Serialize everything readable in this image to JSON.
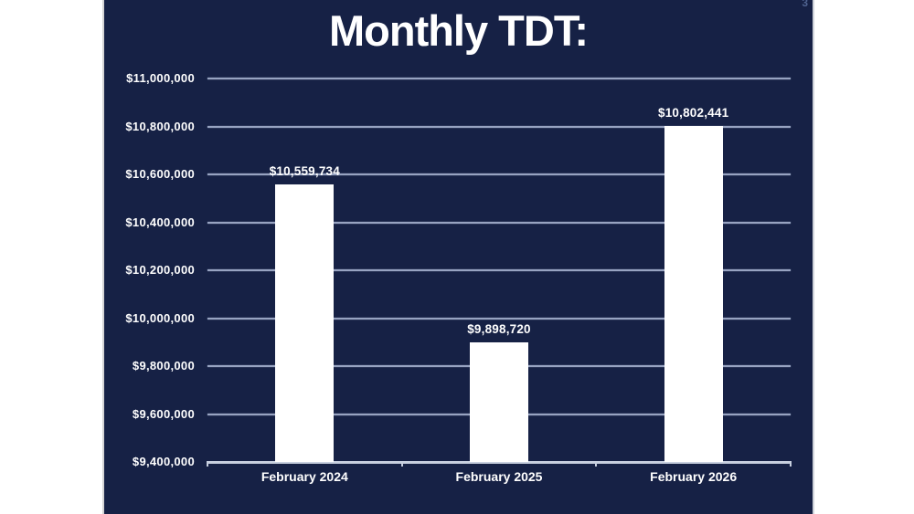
{
  "slide": {
    "page_number": "3"
  },
  "chart_data": {
    "type": "bar",
    "title": "Monthly TDT:",
    "categories": [
      "February 2024",
      "February 2025",
      "February 2026"
    ],
    "values": [
      10559734,
      9898720,
      10802441
    ],
    "value_labels": [
      "$10,559,734",
      "$9,898,720",
      "$10,802,441"
    ],
    "xlabel": "",
    "ylabel": "",
    "ylim": [
      9400000,
      11000000
    ],
    "ytick_step": 200000,
    "yticks": [
      {
        "value": 11000000,
        "label": "$11,000,000"
      },
      {
        "value": 10800000,
        "label": "$10,800,000"
      },
      {
        "value": 10600000,
        "label": "$10,600,000"
      },
      {
        "value": 10400000,
        "label": "$10,400,000"
      },
      {
        "value": 10200000,
        "label": "$10,200,000"
      },
      {
        "value": 10000000,
        "label": "$10,000,000"
      },
      {
        "value": 9800000,
        "label": "$9,800,000"
      },
      {
        "value": 9600000,
        "label": "$9,600,000"
      },
      {
        "value": 9400000,
        "label": "$9,400,000"
      }
    ],
    "grid": true,
    "legend": false
  },
  "colors": {
    "page_background": "#ffffff",
    "slide_background": "#162145",
    "bar_fill": "#ffffff",
    "gridline": "#97a3c1",
    "axis_line": "#c7cfdf",
    "text": "#ffffff",
    "slide_number": "#4f6390"
  }
}
